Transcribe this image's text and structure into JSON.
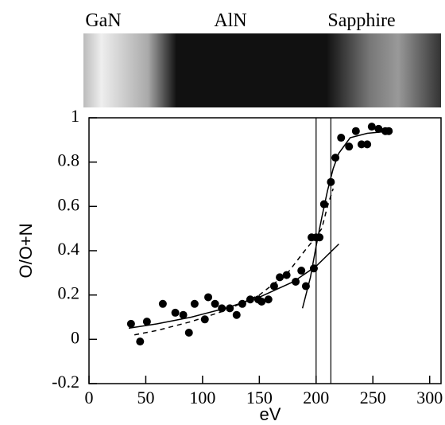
{
  "chart_data": {
    "type": "scatter",
    "strip_labels": [
      "GaN",
      "AlN",
      "Sapphire"
    ],
    "xlabel": "eV",
    "ylabel": "O/O+N",
    "xlim": [
      0,
      310
    ],
    "ylim": [
      -0.2,
      1
    ],
    "xticks": [
      0,
      50,
      100,
      150,
      200,
      250,
      300
    ],
    "yticks": [
      -0.2,
      0,
      0.2,
      0.4,
      0.6,
      0.8,
      1
    ],
    "color": "#000000",
    "x": [
      37,
      45,
      51,
      65,
      76,
      83,
      88,
      93,
      102,
      105,
      111,
      117,
      124,
      130,
      135,
      142,
      149,
      152,
      158,
      163,
      168,
      174,
      182,
      187,
      191,
      198,
      196,
      200,
      203,
      207,
      213,
      217,
      222,
      229,
      235,
      240,
      245,
      249,
      255,
      261,
      264
    ],
    "values": [
      0.07,
      -0.01,
      0.08,
      0.16,
      0.12,
      0.11,
      0.03,
      0.16,
      0.09,
      0.19,
      0.16,
      0.14,
      0.14,
      0.11,
      0.16,
      0.18,
      0.18,
      0.17,
      0.18,
      0.24,
      0.28,
      0.29,
      0.26,
      0.31,
      0.24,
      0.32,
      0.46,
      0.46,
      0.46,
      0.61,
      0.71,
      0.82,
      0.91,
      0.87,
      0.94,
      0.88,
      0.88,
      0.96,
      0.95,
      0.94,
      0.94
    ],
    "curves": [
      {
        "dash": false,
        "x": [
          35,
          60,
          90,
          120,
          150,
          180,
          200,
          220
        ],
        "values": [
          0.05,
          0.07,
          0.1,
          0.14,
          0.19,
          0.26,
          0.33,
          0.43
        ]
      },
      {
        "dash": false,
        "x": [
          188,
          195,
          200,
          205,
          210,
          215,
          220,
          230,
          245,
          265
        ],
        "values": [
          0.14,
          0.28,
          0.42,
          0.55,
          0.67,
          0.77,
          0.84,
          0.91,
          0.93,
          0.94
        ]
      },
      {
        "dash": true,
        "x": [
          40,
          60,
          90,
          120,
          150,
          175,
          190,
          198,
          205,
          210,
          215
        ],
        "values": [
          0.02,
          0.04,
          0.08,
          0.13,
          0.2,
          0.3,
          0.4,
          0.45,
          0.5,
          0.6,
          0.68
        ]
      }
    ],
    "vlines": [
      200,
      213
    ]
  }
}
